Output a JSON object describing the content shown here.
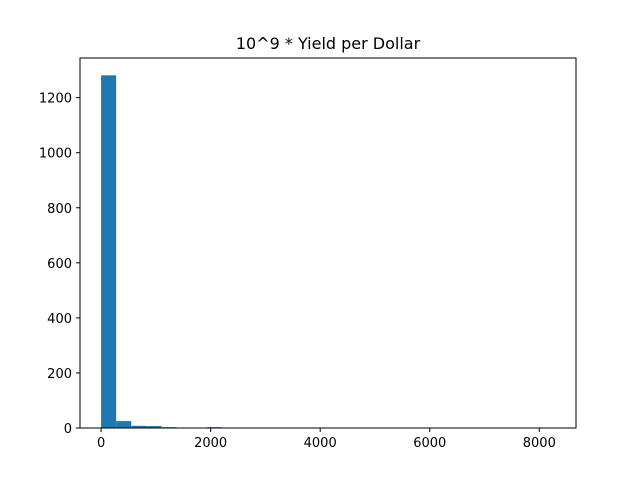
{
  "chart_data": {
    "type": "bar",
    "subtype": "histogram",
    "title": "10^9 * Yield per Dollar",
    "xlabel": "",
    "ylabel": "",
    "xlim": [
      -385,
      8670
    ],
    "ylim": [
      0,
      1344
    ],
    "x_ticks": [
      0,
      2000,
      4000,
      6000,
      8000
    ],
    "y_ticks": [
      0,
      200,
      400,
      600,
      800,
      1000,
      1200
    ],
    "bar_color": "#1f77b4",
    "grid": false,
    "legend": "none",
    "bins": {
      "start": 0,
      "width": 275,
      "count": 30
    },
    "values": [
      1281,
      25,
      8,
      7,
      3,
      1,
      0,
      3,
      0,
      0,
      0,
      0,
      0,
      0,
      0,
      0,
      0,
      0,
      0,
      0,
      0,
      0,
      0,
      0,
      0,
      0,
      0,
      0,
      0,
      1
    ]
  }
}
